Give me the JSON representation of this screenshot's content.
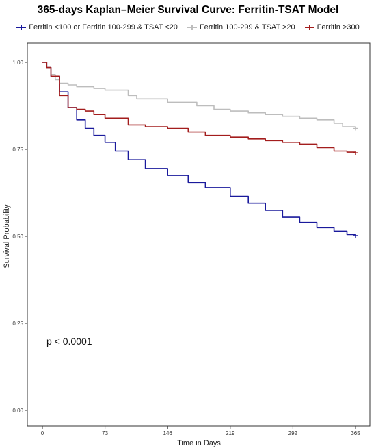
{
  "chart_data": {
    "type": "line",
    "title": "365-days Kaplan–Meier Survival Curve: Ferritin-TSAT Model",
    "xlabel": "Time in Days",
    "ylabel": "Survival Probability",
    "x_ticks": [
      0,
      73,
      146,
      219,
      292,
      365
    ],
    "y_ticks": [
      0.0,
      0.25,
      0.5,
      0.75,
      1.0
    ],
    "y_tick_labels": [
      "0.00",
      "0.25",
      "0.50",
      "0.75",
      "1.00"
    ],
    "xlim": [
      0,
      365
    ],
    "ylim": [
      0,
      1
    ],
    "grid": false,
    "legend_position": "top",
    "annotation": "p < 0.0001",
    "series": [
      {
        "name": "Ferritin <100 or Ferritin 100-299 & TSAT <20",
        "color": "#1a1a9c",
        "x": [
          0,
          5,
          10,
          20,
          30,
          40,
          50,
          60,
          73,
          85,
          100,
          120,
          146,
          170,
          190,
          219,
          240,
          260,
          280,
          300,
          320,
          340,
          355,
          365
        ],
        "y": [
          1.0,
          0.985,
          0.96,
          0.915,
          0.87,
          0.835,
          0.81,
          0.79,
          0.77,
          0.745,
          0.72,
          0.695,
          0.675,
          0.655,
          0.64,
          0.615,
          0.595,
          0.575,
          0.555,
          0.54,
          0.525,
          0.515,
          0.505,
          0.502
        ]
      },
      {
        "name": "Ferritin 100-299 & TSAT >20",
        "color": "#bdbdbd",
        "x": [
          0,
          5,
          10,
          15,
          20,
          30,
          40,
          50,
          60,
          73,
          100,
          110,
          146,
          160,
          180,
          200,
          219,
          240,
          260,
          280,
          300,
          320,
          340,
          350,
          365
        ],
        "y": [
          1.0,
          0.985,
          0.965,
          0.95,
          0.94,
          0.935,
          0.93,
          0.93,
          0.925,
          0.92,
          0.905,
          0.895,
          0.885,
          0.885,
          0.875,
          0.865,
          0.86,
          0.855,
          0.85,
          0.845,
          0.84,
          0.835,
          0.825,
          0.815,
          0.81
        ]
      },
      {
        "name": "Ferritin >300",
        "color": "#a31d1d",
        "x": [
          0,
          5,
          10,
          20,
          30,
          40,
          50,
          60,
          73,
          100,
          120,
          146,
          170,
          190,
          219,
          240,
          260,
          280,
          300,
          320,
          340,
          355,
          365
        ],
        "y": [
          1.0,
          0.985,
          0.96,
          0.905,
          0.87,
          0.865,
          0.86,
          0.85,
          0.84,
          0.82,
          0.815,
          0.81,
          0.8,
          0.79,
          0.785,
          0.78,
          0.775,
          0.77,
          0.765,
          0.755,
          0.745,
          0.742,
          0.74
        ]
      }
    ]
  }
}
